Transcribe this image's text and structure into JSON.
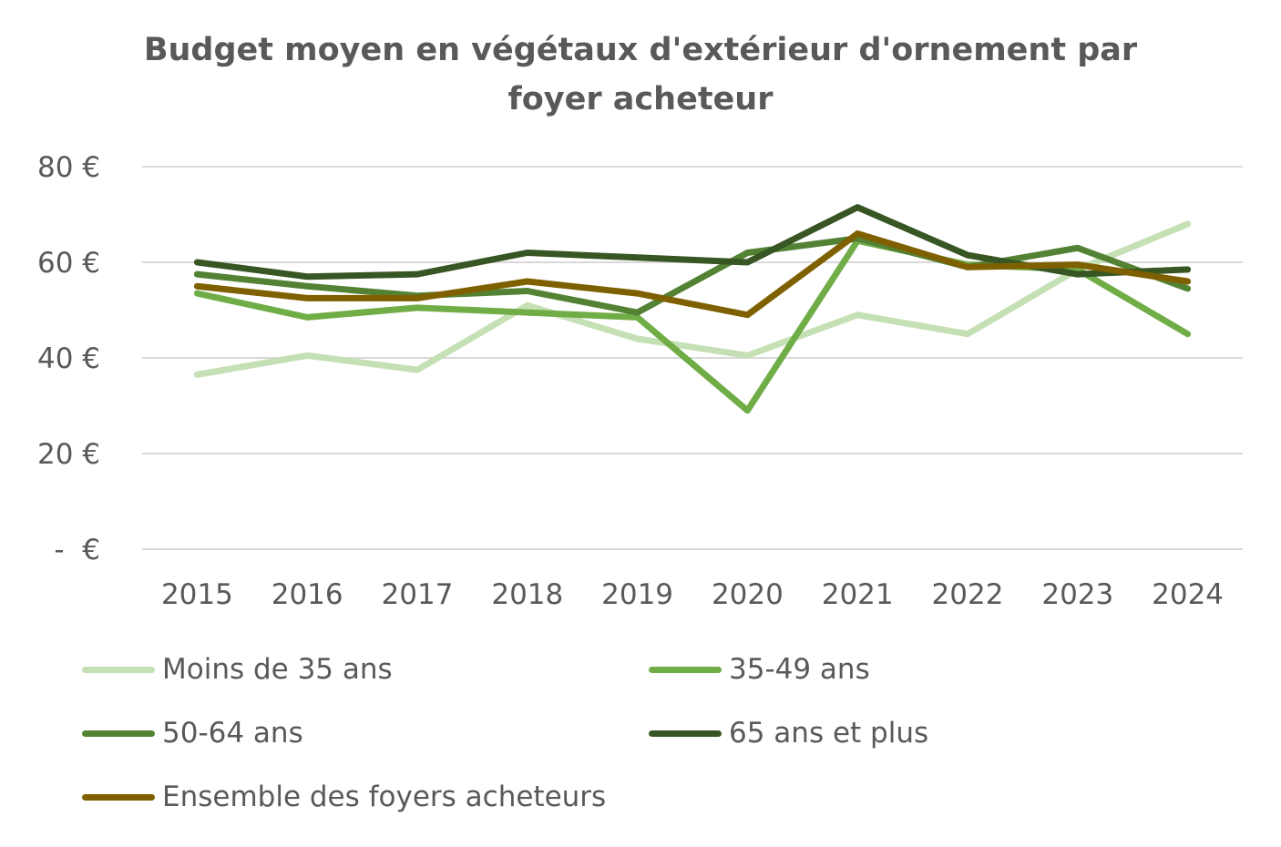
{
  "chart_data": {
    "type": "line",
    "title_lines": [
      "Budget moyen en végétaux d'extérieur d'ornement par",
      "foyer acheteur"
    ],
    "xlabel": "",
    "ylabel": "",
    "categories": [
      "2015",
      "2016",
      "2017",
      "2018",
      "2019",
      "2020",
      "2021",
      "2022",
      "2023",
      "2024"
    ],
    "ylim": [
      0,
      80
    ],
    "yticks": [
      0,
      20,
      40,
      60,
      80
    ],
    "ytick_labels": [
      "-  €",
      "20 €",
      "40 €",
      "60 €",
      "80 €"
    ],
    "grid": true,
    "legend_position": "bottom",
    "series": [
      {
        "name": "Moins de 35 ans",
        "color": "#c5e0b4",
        "values": [
          36.5,
          40.5,
          37.5,
          51,
          44,
          40.5,
          49,
          45,
          58.5,
          68
        ]
      },
      {
        "name": "35-49 ans",
        "color": "#70ad47",
        "values": [
          53.5,
          48.5,
          50.5,
          49.5,
          48.5,
          29,
          64.5,
          59.5,
          58.5,
          45
        ]
      },
      {
        "name": "50-64 ans",
        "color": "#548235",
        "values": [
          57.5,
          55,
          53,
          54,
          49.5,
          62,
          65,
          59,
          63,
          54.5
        ]
      },
      {
        "name": "65 ans et plus",
        "color": "#375623",
        "values": [
          60,
          57,
          57.5,
          62,
          61,
          60,
          71.5,
          61.5,
          57.5,
          58.5
        ]
      },
      {
        "name": "Ensemble des foyers acheteurs",
        "color": "#7f6000",
        "values": [
          55,
          52.5,
          52.5,
          56,
          53.5,
          49,
          66,
          59,
          59.5,
          56
        ]
      }
    ]
  }
}
